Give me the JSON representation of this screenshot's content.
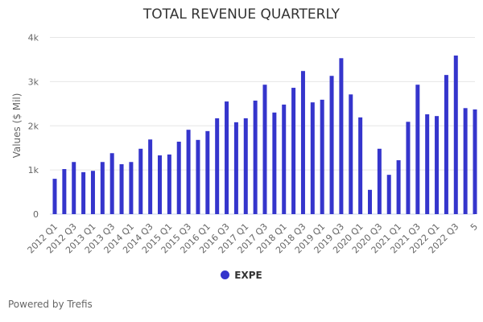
{
  "chart_data": {
    "type": "bar",
    "title": "TOTAL REVENUE QUARTERLY",
    "ylabel": "Values ($ Mil)",
    "xlabel": "",
    "ylim": [
      0,
      4000
    ],
    "yticks": [
      0,
      1000,
      2000,
      3000,
      4000
    ],
    "ytick_labels": [
      "0",
      "1k",
      "2k",
      "3k",
      "4k"
    ],
    "grid": true,
    "legend_position": "bottom",
    "categories": [
      "2012 Q1",
      "",
      "2012 Q3",
      "",
      "2013 Q1",
      "",
      "2013 Q3",
      "",
      "2014 Q1",
      "",
      "2014 Q3",
      "",
      "2015 Q1",
      "",
      "2015 Q3",
      "",
      "2016 Q1",
      "",
      "2016 Q3",
      "",
      "2017 Q1",
      "",
      "2017 Q3",
      "",
      "2018 Q1",
      "",
      "2018 Q3",
      "",
      "2019 Q1",
      "",
      "2019 Q3",
      "",
      "2020 Q1",
      "",
      "2020 Q3",
      "",
      "2021 Q1",
      "",
      "2021 Q3",
      "",
      "2022 Q1",
      "",
      "2022 Q3",
      "",
      "5"
    ],
    "series": [
      {
        "name": "EXPE",
        "color": "#3535cc",
        "values": [
          800,
          1020,
          1180,
          950,
          980,
          1180,
          1380,
          1130,
          1180,
          1480,
          1690,
          1330,
          1350,
          1640,
          1910,
          1680,
          1880,
          2170,
          2550,
          2080,
          2170,
          2570,
          2930,
          2300,
          2480,
          2860,
          3240,
          2530,
          2590,
          3130,
          3530,
          2710,
          2190,
          550,
          1480,
          890,
          1220,
          2090,
          2930,
          2260,
          2220,
          3150,
          3590,
          2400,
          2370
        ]
      }
    ]
  },
  "footer": {
    "credit": "Powered by Trefis"
  }
}
